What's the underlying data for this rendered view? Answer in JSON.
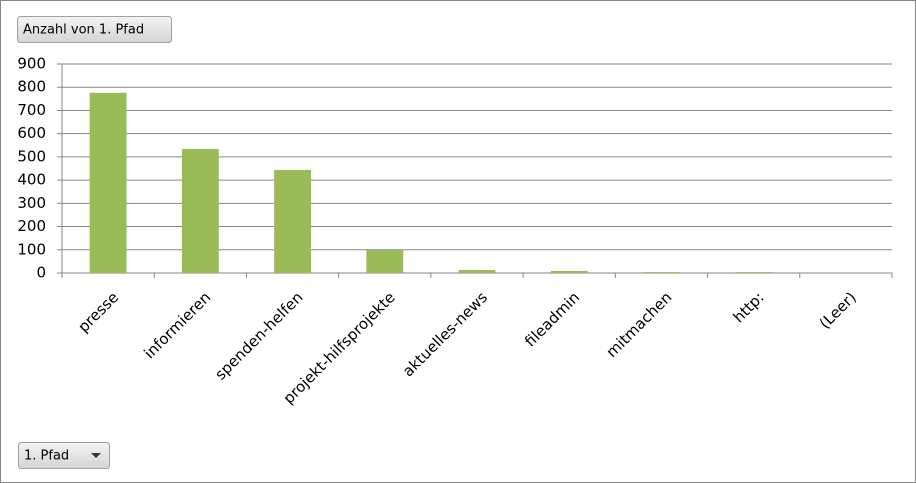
{
  "chart_data": {
    "type": "bar",
    "value_field_button": "Anzahl von 1. Pfad",
    "axis_field_button": "1. Pfad",
    "categories": [
      "presse",
      "informieren",
      "spenden-helfen",
      "projekt-hilfsprojekte",
      "aktuelles-news",
      "fileadmin",
      "mitmachen",
      "http:",
      "(Leer)"
    ],
    "values": [
      776,
      534,
      444,
      99,
      13,
      9,
      4,
      4,
      0
    ],
    "color": "#9bbb59",
    "ylim": [
      0,
      900
    ],
    "yticks": [
      0,
      100,
      200,
      300,
      400,
      500,
      600,
      700,
      800,
      900
    ],
    "grid": true
  }
}
